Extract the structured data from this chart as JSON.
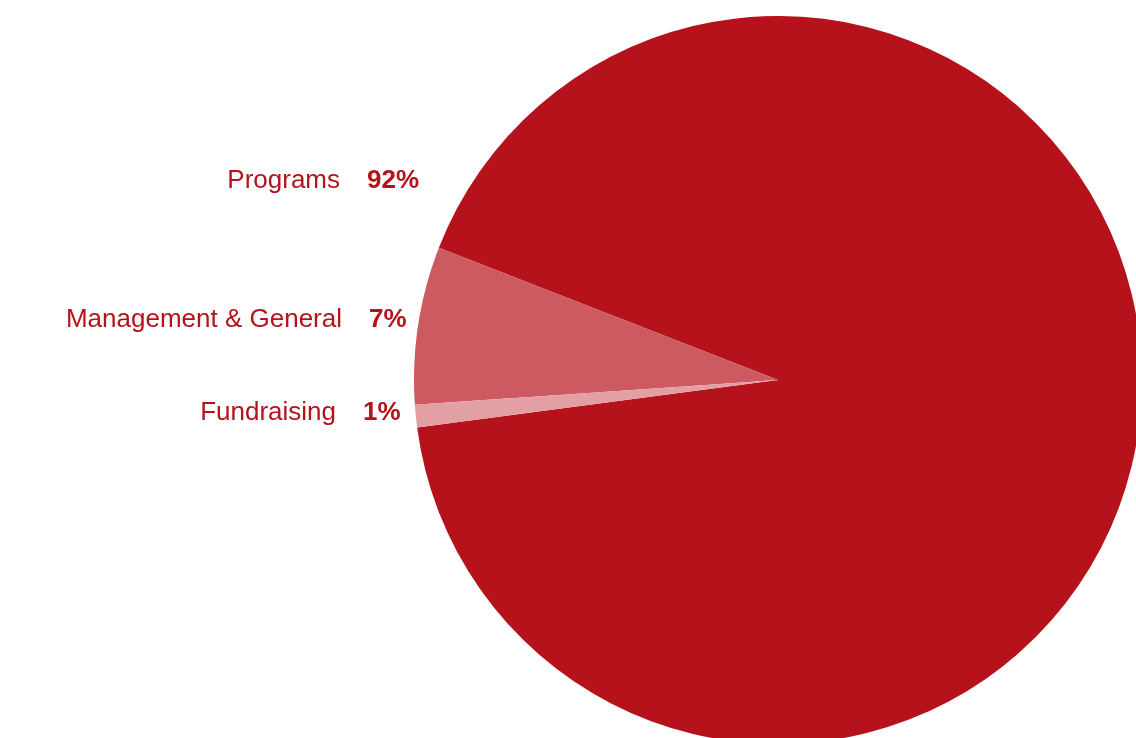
{
  "chart_data": {
    "type": "pie",
    "categories": [
      "Programs",
      "Management & General",
      "Fundraising"
    ],
    "values": [
      92,
      7,
      1
    ],
    "colors": [
      "#b5121b",
      "#cc5a60",
      "#e3a0a4"
    ],
    "value_labels": [
      "92%",
      "7%",
      "1%"
    ]
  }
}
